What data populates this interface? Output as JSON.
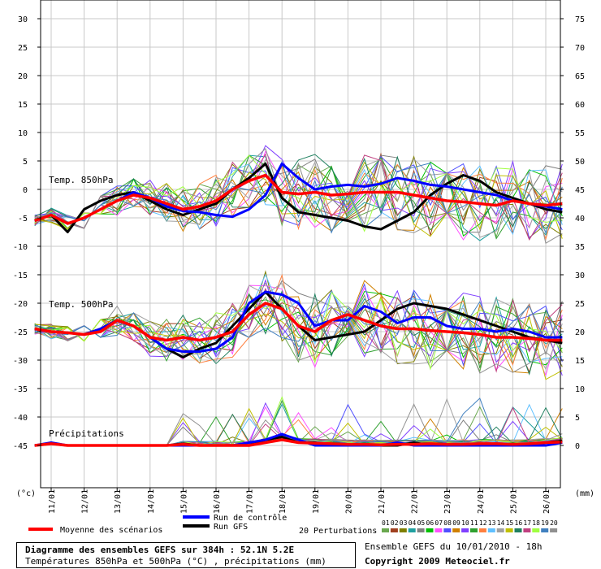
{
  "chart_data": {
    "type": "line",
    "left_unit": "(°c)",
    "right_unit": "(mm)",
    "left_ticks": [
      30,
      25,
      20,
      15,
      10,
      5,
      0,
      -5,
      -10,
      -15,
      -20,
      -25,
      -30,
      -35,
      -40,
      -45
    ],
    "right_ticks": [
      75,
      70,
      65,
      60,
      55,
      50,
      45,
      40,
      35,
      30,
      25,
      20,
      15,
      10,
      5,
      0
    ],
    "ylim": [
      -53.5,
      33
    ],
    "x_dates": [
      "11/01",
      "12/01",
      "13/01",
      "14/01",
      "15/01",
      "16/01",
      "17/01",
      "18/01",
      "19/01",
      "20/01",
      "21/01",
      "22/01",
      "23/01",
      "24/01",
      "25/01",
      "26/01"
    ],
    "panel_labels": [
      "Temp. 850hPa",
      "Temp. 500hPa",
      "Précipitations"
    ],
    "x": [
      10.5,
      11.0,
      11.5,
      12.0,
      12.5,
      13.0,
      13.5,
      14.0,
      14.5,
      15.0,
      15.5,
      16.0,
      16.5,
      17.0,
      17.5,
      18.0,
      18.5,
      19.0,
      19.5,
      20.0,
      20.5,
      21.0,
      21.5,
      22.0,
      22.5,
      23.0,
      23.5,
      24.0,
      24.5,
      25.0,
      25.5,
      26.0,
      26.5
    ],
    "series": [
      {
        "name": "Moyenne des scénarios",
        "group": "t850",
        "color": "#ff0000",
        "values": [
          -5.5,
          -4.5,
          -6,
          -5,
          -3.5,
          -2,
          -1,
          -1.5,
          -2.5,
          -3.5,
          -3,
          -2,
          0,
          1.5,
          2.5,
          -0.5,
          -0.8,
          -0.5,
          -1,
          -0.8,
          -0.5,
          -0.5,
          -0.5,
          -1,
          -1.5,
          -2,
          -2.2,
          -2.5,
          -2.8,
          -2,
          -2.5,
          -2.8,
          -2.5
        ]
      },
      {
        "name": "Run de contrôle",
        "group": "t850",
        "color": "#0000ff",
        "values": [
          -5.5,
          -4.5,
          -6,
          -5,
          -3.5,
          -2,
          -0.5,
          -1.5,
          -3,
          -3.8,
          -4,
          -4.5,
          -4.8,
          -3.5,
          -1,
          4.5,
          2,
          0,
          0.5,
          0.8,
          0.5,
          1,
          2,
          1.5,
          0.8,
          0.5,
          0,
          -0.5,
          -1,
          -2,
          -2.5,
          -3,
          -3.5
        ]
      },
      {
        "name": "Run GFS",
        "group": "t850",
        "color": "#000000",
        "values": [
          -5.5,
          -4.5,
          -7.5,
          -3.5,
          -2,
          -1,
          -0.5,
          -2,
          -3.5,
          -4.5,
          -3.5,
          -2.5,
          0,
          2,
          4.5,
          -1.5,
          -4,
          -4.5,
          -5,
          -5.5,
          -6.5,
          -7,
          -5.5,
          -4,
          -1,
          1,
          2.5,
          1.5,
          -0.5,
          -1.5,
          -2.5,
          -3.5,
          -4
        ]
      },
      {
        "name": "Moyenne des scénarios",
        "group": "t500",
        "color": "#ff0000",
        "values": [
          -24.5,
          -25,
          -25.2,
          -25.5,
          -25,
          -23,
          -24,
          -26,
          -26.5,
          -26,
          -26.5,
          -26,
          -25,
          -22,
          -20,
          -21,
          -24,
          -25,
          -23,
          -22,
          -23,
          -24,
          -24.5,
          -24.5,
          -24.8,
          -25,
          -25.2,
          -25.5,
          -26,
          -26,
          -26.2,
          -26.5,
          -26.5
        ]
      },
      {
        "name": "Run de contrôle",
        "group": "t500",
        "color": "#0000ff",
        "values": [
          -24.5,
          -25,
          -25.2,
          -25.5,
          -24.5,
          -23,
          -24,
          -26,
          -28,
          -28.5,
          -28.5,
          -28,
          -26,
          -20,
          -18,
          -18.5,
          -20,
          -24,
          -23,
          -23,
          -20.5,
          -21.5,
          -23.5,
          -22.5,
          -22.5,
          -24,
          -24.5,
          -24.5,
          -25,
          -24.5,
          -25,
          -26,
          -26
        ]
      },
      {
        "name": "Run GFS",
        "group": "t500",
        "color": "#000000",
        "values": [
          -24.5,
          -25,
          -25.2,
          -25.5,
          -24.5,
          -23,
          -24,
          -26,
          -28,
          -29.5,
          -28,
          -27,
          -24,
          -21,
          -18,
          -21,
          -24,
          -26.5,
          -26,
          -25.5,
          -25,
          -23,
          -21,
          -20,
          -20.5,
          -21,
          -22,
          -23,
          -24,
          -25,
          -26,
          -26.5,
          -27
        ]
      },
      {
        "name": "Moyenne des scénarios",
        "group": "precip",
        "color": "#ff0000",
        "values": [
          0,
          0.3,
          0,
          0,
          0,
          0,
          0,
          0,
          0,
          0.2,
          0,
          0,
          0,
          0,
          0.5,
          1,
          0.5,
          0.4,
          0.3,
          0.2,
          0.2,
          0.1,
          0.2,
          0.2,
          0.3,
          0.2,
          0.2,
          0.3,
          0.3,
          0.2,
          0.3,
          0.5,
          0.6
        ]
      },
      {
        "name": "Run de contrôle",
        "group": "precip",
        "color": "#0000ff",
        "values": [
          0,
          0.5,
          0,
          0,
          0,
          0,
          0,
          0,
          0,
          0,
          0,
          0,
          0,
          0.5,
          1,
          2,
          1,
          0,
          0,
          0,
          0,
          0,
          0.5,
          0,
          0,
          0,
          0,
          0,
          0,
          0,
          0,
          0,
          0.5
        ]
      },
      {
        "name": "Run GFS",
        "group": "precip",
        "color": "#000000",
        "values": [
          0,
          0.3,
          0,
          0,
          0,
          0,
          0,
          0,
          0,
          0.3,
          0,
          0,
          0,
          0,
          1,
          1.5,
          0.5,
          0.5,
          0,
          0,
          0,
          0,
          0,
          0.5,
          0,
          0,
          0,
          0,
          0,
          0.3,
          0,
          0.5,
          0.8
        ]
      }
    ],
    "perturbation_colors": [
      "#6aa84f",
      "#a04020",
      "#7f7f00",
      "#20a0a0",
      "#808080",
      "#00c000",
      "#ff4fff",
      "#4f4fff",
      "#d08000",
      "#8040ff",
      "#30a030",
      "#ff8040",
      "#60c0ff",
      "#a0a0a0",
      "#c0c000",
      "#208060",
      "#c04080",
      "#a0ff40",
      "#4080c0",
      "#909090"
    ],
    "grid": true
  },
  "legend": {
    "mean_label": "Moyenne des scénarios",
    "control_label": "Run de contrôle",
    "gfs_label": "Run GFS",
    "perturbations_label": "20 Perturbations",
    "perturbation_numbers": [
      "01",
      "02",
      "03",
      "04",
      "05",
      "06",
      "07",
      "08",
      "09",
      "10",
      "11",
      "12",
      "13",
      "14",
      "15",
      "16",
      "17",
      "18",
      "19",
      "20"
    ]
  },
  "footer": {
    "title": "Diagramme des ensembles GEFS sur 384h : 52.1N 5.2E",
    "subtitle": "Températures 850hPa et 500hPa (°C) , précipitations (mm)",
    "run_info": "Ensemble GEFS du 10/01/2010 - 18h",
    "copyright": "Copyright 2009 Meteociel.fr"
  }
}
